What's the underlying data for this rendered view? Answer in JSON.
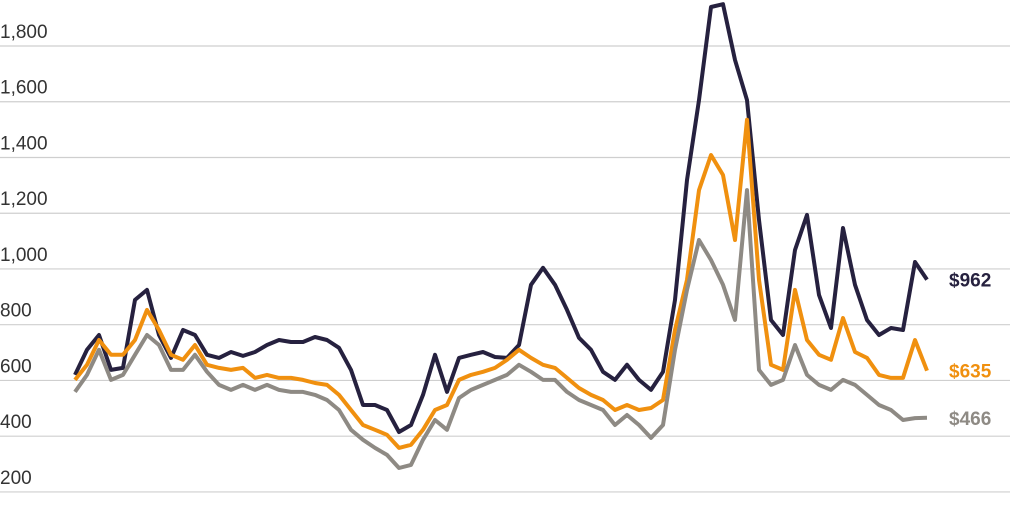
{
  "chart_data": {
    "type": "line",
    "ylim": [
      128,
      1965
    ],
    "yticks": [
      {
        "value": 200,
        "label": "200"
      },
      {
        "value": 400,
        "label": "400"
      },
      {
        "value": 600,
        "label": "600"
      },
      {
        "value": 800,
        "label": "800"
      },
      {
        "value": 1000,
        "label": "1,000"
      },
      {
        "value": 1200,
        "label": "1,200"
      },
      {
        "value": 1400,
        "label": "1,400"
      },
      {
        "value": 1600,
        "label": "1,600"
      },
      {
        "value": 1800,
        "label": "1,800"
      }
    ],
    "grid": true,
    "series": [
      {
        "color": "#26213f",
        "values": [
          620,
          710,
          763,
          638,
          645,
          889,
          925,
          763,
          681,
          781,
          763,
          692,
          681,
          702,
          688,
          702,
          727,
          745,
          738,
          738,
          756,
          745,
          717,
          638,
          512,
          512,
          494,
          415,
          440,
          548,
          692,
          559,
          681,
          692,
          702,
          684,
          681,
          727,
          943,
          1004,
          943,
          853,
          753,
          710,
          631,
          602,
          656,
          602,
          566,
          631,
          889,
          1319,
          1606,
          1940,
          1950,
          1750,
          1606,
          1176,
          817,
          763,
          1068,
          1194,
          907,
          788,
          1147,
          943,
          817,
          763,
          788,
          781,
          1025,
          962
        ],
        "value_labels": [
          null,
          null,
          null,
          null,
          null,
          null,
          null,
          null,
          null,
          null,
          null,
          null,
          null,
          null,
          null,
          null,
          null,
          null,
          null,
          null,
          null,
          null,
          null,
          null,
          null,
          null,
          null,
          null,
          null,
          null,
          null,
          null,
          null,
          null,
          null,
          null,
          null,
          null,
          null,
          null,
          null,
          null,
          null,
          null,
          null,
          null,
          null,
          null,
          null,
          null,
          null,
          null,
          null,
          null,
          null,
          null,
          null,
          null,
          null,
          null,
          null,
          null,
          null,
          null,
          null,
          null,
          null,
          null,
          null,
          null,
          null,
          "$962"
        ]
      },
      {
        "color": "#f0900f",
        "values": [
          602,
          656,
          745,
          692,
          692,
          745,
          853,
          781,
          692,
          674,
          727,
          656,
          645,
          638,
          645,
          609,
          620,
          609,
          609,
          602,
          591,
          584,
          548,
          494,
          440,
          423,
          405,
          358,
          369,
          423,
          494,
          512,
          602,
          620,
          631,
          645,
          674,
          710,
          681,
          656,
          645,
          609,
          573,
          548,
          530,
          494,
          512,
          494,
          501,
          530,
          781,
          961,
          1283,
          1409,
          1337,
          1104,
          1535,
          961,
          656,
          638,
          925,
          745,
          692,
          674,
          824,
          702,
          681,
          620,
          609,
          609,
          745,
          635
        ],
        "value_labels": [
          null,
          null,
          null,
          null,
          null,
          null,
          null,
          null,
          null,
          null,
          null,
          null,
          null,
          null,
          null,
          null,
          null,
          null,
          null,
          null,
          null,
          null,
          null,
          null,
          null,
          null,
          null,
          null,
          null,
          null,
          null,
          null,
          null,
          null,
          null,
          null,
          null,
          null,
          null,
          null,
          null,
          null,
          null,
          null,
          null,
          null,
          null,
          null,
          null,
          null,
          null,
          null,
          null,
          null,
          null,
          null,
          null,
          null,
          null,
          null,
          null,
          null,
          null,
          null,
          null,
          null,
          null,
          null,
          null,
          null,
          null,
          "$635"
        ]
      },
      {
        "color": "#8e8a84",
        "values": [
          559,
          620,
          710,
          602,
          620,
          692,
          763,
          727,
          638,
          638,
          692,
          631,
          584,
          566,
          584,
          566,
          584,
          566,
          559,
          559,
          548,
          530,
          494,
          423,
          387,
          358,
          333,
          286,
          297,
          387,
          458,
          423,
          537,
          566,
          584,
          602,
          620,
          656,
          631,
          602,
          602,
          559,
          530,
          512,
          494,
          440,
          476,
          440,
          394,
          440,
          710,
          925,
          1104,
          1032,
          943,
          817,
          1283,
          638,
          584,
          602,
          727,
          620,
          584,
          566,
          602,
          584,
          548,
          512,
          494,
          458,
          465,
          466
        ],
        "value_labels": [
          null,
          null,
          null,
          null,
          null,
          null,
          null,
          null,
          null,
          null,
          null,
          null,
          null,
          null,
          null,
          null,
          null,
          null,
          null,
          null,
          null,
          null,
          null,
          null,
          null,
          null,
          null,
          null,
          null,
          null,
          null,
          null,
          null,
          null,
          null,
          null,
          null,
          null,
          null,
          null,
          null,
          null,
          null,
          null,
          null,
          null,
          null,
          null,
          null,
          null,
          null,
          null,
          null,
          null,
          null,
          null,
          null,
          null,
          null,
          null,
          null,
          null,
          null,
          null,
          null,
          null,
          null,
          null,
          null,
          null,
          null,
          "$466"
        ]
      }
    ]
  }
}
